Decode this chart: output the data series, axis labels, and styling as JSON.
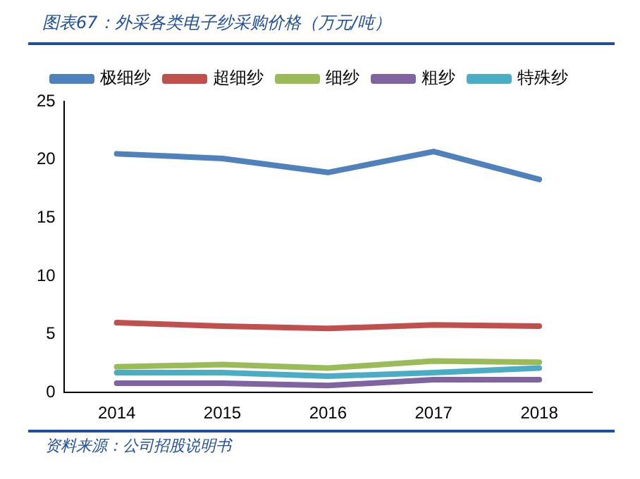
{
  "chart_data": {
    "type": "line",
    "title": "图表67：外采各类电子纱采购价格（万元/吨）",
    "annotations": [
      "资料来源：公司招股说明书"
    ],
    "categories": [
      "2014",
      "2015",
      "2016",
      "2017",
      "2018"
    ],
    "series": [
      {
        "name": "极细纱",
        "color": "#4f81bd",
        "values": [
          20.5,
          20.1,
          18.9,
          20.7,
          18.3
        ]
      },
      {
        "name": "超细纱",
        "color": "#c0504d",
        "values": [
          6.0,
          5.7,
          5.5,
          5.8,
          5.7
        ]
      },
      {
        "name": "细纱",
        "color": "#9bbb59",
        "values": [
          2.2,
          2.4,
          2.1,
          2.7,
          2.6
        ]
      },
      {
        "name": "粗纱",
        "color": "#8064a2",
        "values": [
          0.8,
          0.8,
          0.6,
          1.1,
          1.1
        ]
      },
      {
        "name": "特殊纱",
        "color": "#4bacc6",
        "values": [
          1.7,
          1.7,
          1.4,
          1.7,
          2.1
        ]
      }
    ],
    "ylim": [
      0,
      25
    ],
    "yticks": [
      0,
      5,
      10,
      15,
      20,
      25
    ],
    "grid": false,
    "legend": "top",
    "marker": "none",
    "line_style": "solid"
  }
}
